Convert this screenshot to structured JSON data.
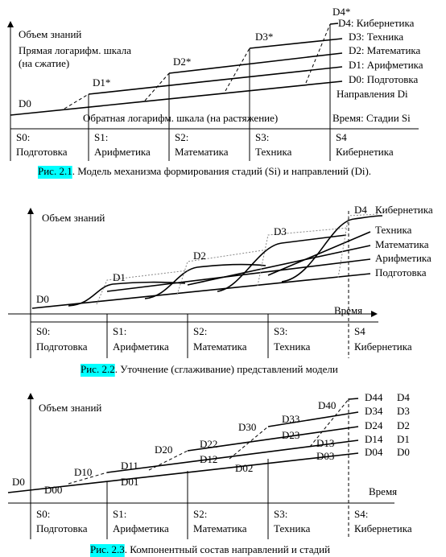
{
  "figures": [
    {
      "y_axis_label": "Объем знаний",
      "y_scale_note": "Прямая логарифм. шкала",
      "y_scale_note_2": "(на сжатие)",
      "levels": [
        "D0",
        "D1*",
        "D2*",
        "D3*",
        "D4*"
      ],
      "directions": [
        "D4: Кибернетика",
        "D3: Техника",
        "D2: Математика",
        "D1: Арифметика",
        "D0: Подготовка"
      ],
      "directions_label": "Направления Di",
      "x_scale_note": "Обратная логарифм. шкала (на растяжение)",
      "x_axis_label": "Время: Стадии Si",
      "stages": [
        {
          "code": "S0:",
          "name": "Подготовка"
        },
        {
          "code": "S1:",
          "name": "Арифметика"
        },
        {
          "code": "S2:",
          "name": "Математика"
        },
        {
          "code": "S3:",
          "name": "Техника"
        },
        {
          "code": "S4",
          "name": "Кибернетика"
        }
      ],
      "caption": {
        "label": "Рис. 2.1",
        "text": ". Модель механизма формирования стадий (Si) и направлений (Di)."
      }
    },
    {
      "y_axis_label": "Объем знаний",
      "levels": [
        "D0",
        "D1",
        "D2",
        "D3",
        "D4"
      ],
      "directions": [
        "Кибернетика",
        "Техника",
        "Математика",
        "Арифметика",
        "Подготовка"
      ],
      "x_axis_label": "Время",
      "stages": [
        {
          "code": "S0:",
          "name": "Подготовка"
        },
        {
          "code": "S1:",
          "name": "Арифметика"
        },
        {
          "code": "S2:",
          "name": "Математика"
        },
        {
          "code": "S3:",
          "name": "Техника"
        },
        {
          "code": "S4",
          "name": "Кибернетика"
        }
      ],
      "caption": {
        "label": "Рис. 2.2",
        "text": ". Уточнение (сглаживание) представлений модели"
      }
    },
    {
      "y_axis_label": "Объем знаний",
      "components": [
        "D0",
        "D00",
        "D10",
        "D11",
        "D01",
        "D20",
        "D22",
        "D12",
        "D02",
        "D30",
        "D33",
        "D23",
        "D13",
        "D03",
        "D40"
      ],
      "right_codes": [
        "D44",
        "D34",
        "D24",
        "D14",
        "D04"
      ],
      "directions": [
        "D4",
        "D3",
        "D2",
        "D1",
        "D0"
      ],
      "x_axis_label": "Время",
      "stages": [
        {
          "code": "S0:",
          "name": "Подготовка"
        },
        {
          "code": "S1:",
          "name": "Арифметика"
        },
        {
          "code": "S2:",
          "name": "Математика"
        },
        {
          "code": "S3:",
          "name": "Техника"
        },
        {
          "code": "S4:",
          "name": "Кибернетика"
        }
      ],
      "caption": {
        "label": "Рис. 2.3",
        "text": ". Компонентный состав направлений и стадий"
      }
    }
  ]
}
